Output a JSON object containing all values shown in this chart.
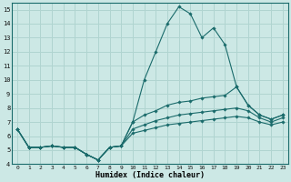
{
  "xlabel": "Humidex (Indice chaleur)",
  "bg_color": "#cce8e5",
  "grid_color": "#b0d4d0",
  "line_color": "#1a6b6b",
  "xlim": [
    -0.5,
    23.5
  ],
  "ylim": [
    4,
    15.5
  ],
  "yticks": [
    4,
    5,
    6,
    7,
    8,
    9,
    10,
    11,
    12,
    13,
    14,
    15
  ],
  "xticks": [
    0,
    1,
    2,
    3,
    4,
    5,
    6,
    7,
    8,
    9,
    10,
    11,
    12,
    13,
    14,
    15,
    16,
    17,
    18,
    19,
    20,
    21,
    22,
    23
  ],
  "series": [
    [
      6.5,
      5.2,
      5.2,
      5.3,
      5.2,
      5.2,
      4.7,
      4.3,
      5.2,
      5.3,
      7.0,
      10.0,
      12.0,
      14.0,
      15.2,
      14.7,
      13.0,
      13.7,
      12.5,
      9.5,
      8.2,
      7.5,
      7.2,
      7.5
    ],
    [
      6.5,
      5.2,
      5.2,
      5.3,
      5.2,
      5.2,
      4.7,
      4.3,
      5.2,
      5.3,
      7.0,
      7.5,
      7.8,
      8.2,
      8.4,
      8.5,
      8.7,
      8.8,
      8.9,
      9.5,
      8.2,
      7.5,
      7.2,
      7.5
    ],
    [
      6.5,
      5.2,
      5.2,
      5.3,
      5.2,
      5.2,
      4.7,
      4.3,
      5.2,
      5.3,
      6.5,
      6.8,
      7.1,
      7.3,
      7.5,
      7.6,
      7.7,
      7.8,
      7.9,
      8.0,
      7.8,
      7.3,
      7.0,
      7.3
    ],
    [
      6.5,
      5.2,
      5.2,
      5.3,
      5.2,
      5.2,
      4.7,
      4.3,
      5.2,
      5.3,
      6.2,
      6.4,
      6.6,
      6.8,
      6.9,
      7.0,
      7.1,
      7.2,
      7.3,
      7.4,
      7.3,
      7.0,
      6.8,
      7.0
    ]
  ]
}
